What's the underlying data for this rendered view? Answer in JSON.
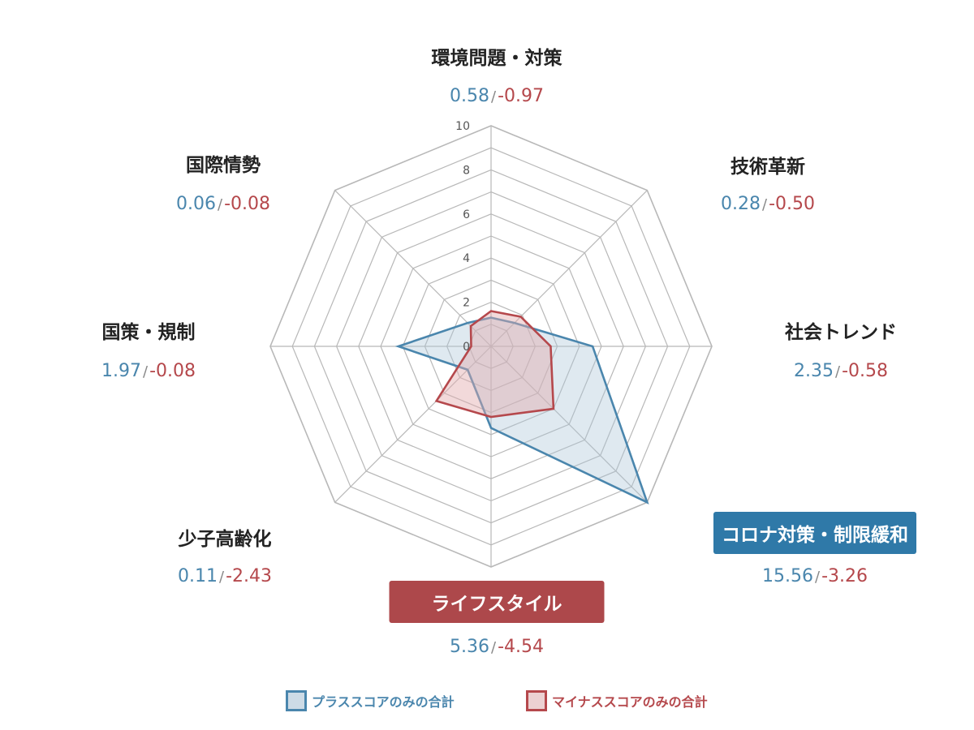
{
  "chart_data": {
    "type": "radar",
    "r_max": 10,
    "r_ticks": [
      0,
      2,
      4,
      6,
      8,
      10
    ],
    "axes": [
      {
        "name": "環境問題・対策",
        "plus": "0.58",
        "minus": "-0.97"
      },
      {
        "name": "技術革新",
        "plus": "0.28",
        "minus": "-0.50"
      },
      {
        "name": "社会トレンド",
        "plus": "2.35",
        "minus": "-0.58"
      },
      {
        "name": "コロナ対策・制限緩和",
        "plus": "15.56",
        "minus": "-3.26",
        "highlight": "blue"
      },
      {
        "name": "ライフスタイル",
        "plus": "5.36",
        "minus": "-4.54",
        "highlight": "red"
      },
      {
        "name": "少子高齢化",
        "plus": "0.11",
        "minus": "-2.43"
      },
      {
        "name": "国策・規制",
        "plus": "1.97",
        "minus": "-0.08"
      },
      {
        "name": "国際情勢",
        "plus": "0.06",
        "minus": "-0.08"
      }
    ],
    "series": [
      {
        "name": "プラススコアのみの合計",
        "color": "#4a86ad",
        "fill": "rgba(170,198,216,0.38)",
        "values": [
          1.3,
          1.5,
          4.6,
          10,
          3.7,
          1.5,
          4.2,
          1.5
        ]
      },
      {
        "name": "マイナススコアのみの合計",
        "color": "#b5484c",
        "fill": "rgba(226,170,172,0.45)",
        "values": [
          1.6,
          1.9,
          2.7,
          4.0,
          3.2,
          3.5,
          0.9,
          1.3
        ]
      }
    ],
    "separator": "/",
    "grid": true,
    "legend_position": "bottom"
  },
  "colors": {
    "plus": "#4a86ad",
    "minus": "#b5484c",
    "grid": "#b8b8b8",
    "highlight_blue": "#2f79a8",
    "highlight_red": "#ad484b"
  }
}
